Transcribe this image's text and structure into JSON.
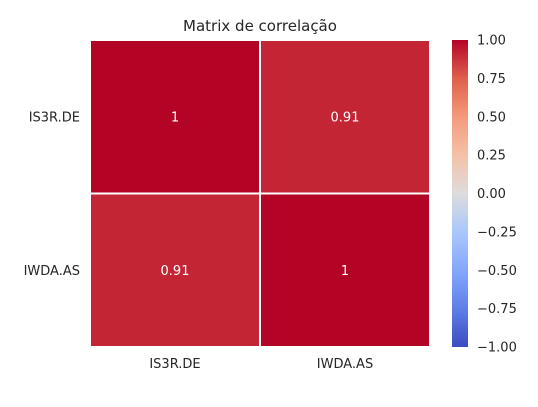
{
  "chart_data": {
    "type": "heatmap",
    "title": "Matrix de correlação",
    "xlabel": "",
    "ylabel": "",
    "rows": [
      "IS3R.DE",
      "IWDA.AS"
    ],
    "columns": [
      "IS3R.DE",
      "IWDA.AS"
    ],
    "values": [
      [
        1.0,
        0.91
      ],
      [
        0.91,
        1.0
      ]
    ],
    "annotations": [
      [
        "1",
        "0.91"
      ],
      [
        "0.91",
        "1"
      ]
    ],
    "colorbar": {
      "colormap": "coolwarm",
      "range": [
        -1.0,
        1.0
      ],
      "ticks": [
        1.0,
        0.75,
        0.5,
        0.25,
        0.0,
        -0.25,
        -0.5,
        -0.75,
        -1.0
      ],
      "tick_labels": [
        "1.00",
        "0.75",
        "0.50",
        "0.25",
        "0.00",
        "−0.25",
        "−0.50",
        "−0.75",
        "−1.00"
      ]
    },
    "grid": false,
    "cell_separator_color": "#ffffff",
    "colors": {
      "max": "#b40426",
      "value_0_91": "#c53334",
      "annotation_text": "#ffffff"
    }
  }
}
